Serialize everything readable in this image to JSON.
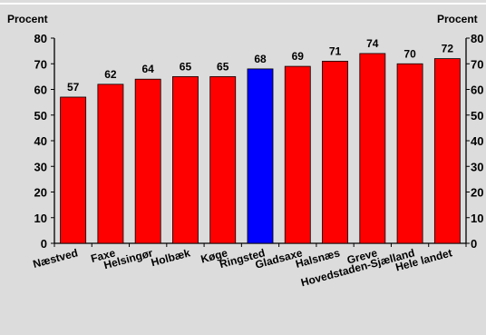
{
  "chart_data": {
    "type": "bar",
    "title": "",
    "xlabel": "",
    "ylabel_left": "Procent",
    "ylabel_right": "Procent",
    "ylim": [
      0,
      80
    ],
    "yticks": [
      0,
      10,
      20,
      30,
      40,
      50,
      60,
      70,
      80
    ],
    "grid": false,
    "categories": [
      "Næstved",
      "Faxe",
      "Helsingør",
      "Holbæk",
      "Køge",
      "Ringsted",
      "Gladsaxe",
      "Halsnæs",
      "Greve",
      "Hovedstaden-Sjælland",
      "Hele landet"
    ],
    "values": [
      57,
      62,
      64,
      65,
      65,
      68,
      69,
      71,
      74,
      70,
      72
    ],
    "highlight": "Ringsted",
    "colors": {
      "bar": "#ff0000",
      "highlight": "#0000ff",
      "background": "#dcdcdc",
      "axis": "#000000"
    }
  }
}
